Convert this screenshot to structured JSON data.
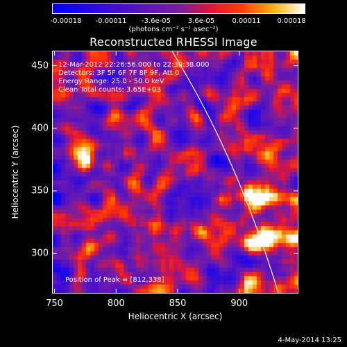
{
  "colorbar": {
    "tick_labels": [
      "-0.00018",
      "-0.00011",
      "-3.6e-05",
      "3.6e-05",
      "0.00011",
      "0.00018"
    ],
    "units": "(photons cm⁻² s⁻¹ asec⁻²)"
  },
  "title": "Reconstructed RHESSI Image",
  "info": {
    "time_range": "12-Mar-2012 22:26:56.000 to 22:30:38.000",
    "detectors": "Detectors: 3F 5F 6F 7F 8F 9F, Att 0",
    "energy_range": "Energy Range: 25.0 - 50.0 keV",
    "clean": "Clean     Total counts: 3.65E+03",
    "peak": "Position of Peak = [812,338]"
  },
  "axes": {
    "xlabel": "Heliocentric X (arcsec)",
    "ylabel": "Heliocentric Y (arcsec)",
    "xticks": [
      "750",
      "800",
      "850",
      "900"
    ],
    "yticks": [
      "450",
      "400",
      "350",
      "300"
    ]
  },
  "datestamp": "4-May-2014 13:25",
  "chart_data": {
    "type": "heatmap",
    "title": "Reconstructed RHESSI Image",
    "xlabel": "Heliocentric X (arcsec)",
    "ylabel": "Heliocentric Y (arcsec)",
    "xlim": [
      748,
      948
    ],
    "ylim": [
      268,
      462
    ],
    "colorbar_range": [
      -0.00018,
      0.00018
    ],
    "peak_position": [
      812,
      338
    ],
    "bright_sources": [
      {
        "x": 772,
        "y": 375
      },
      {
        "x": 805,
        "y": 337
      },
      {
        "x": 920,
        "y": 310
      },
      {
        "x": 915,
        "y": 345
      }
    ],
    "colors": {
      "low": "#0000ff",
      "mid": "#7a1fb0",
      "high": "#ff2000",
      "max": "#ffffff"
    }
  }
}
